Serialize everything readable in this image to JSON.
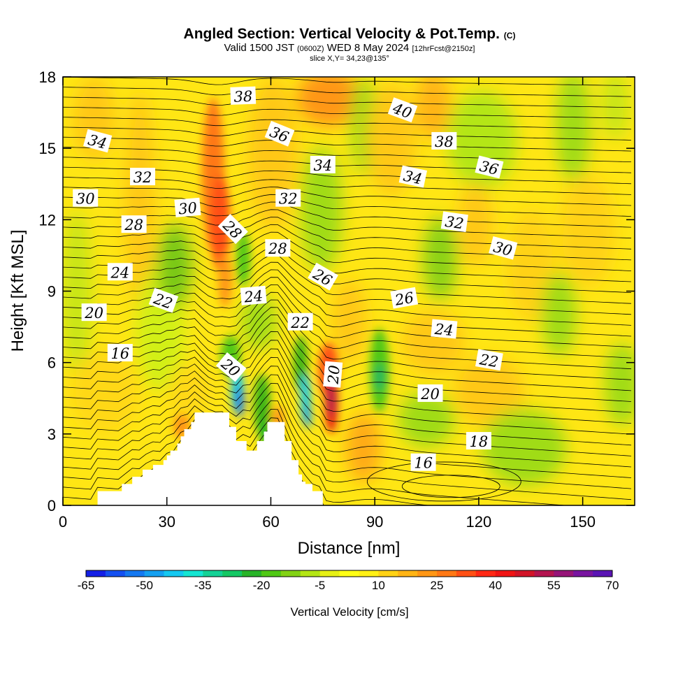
{
  "header": {
    "title": "Angled Section: Vertical Velocity & Pot.Temp.",
    "title_unit": "(C)",
    "valid_prefix": "Valid 1500 JST",
    "valid_zulu": "(0600Z)",
    "valid_date": "WED 8 May 2024",
    "forecast": "[12hrFcst@2150z]",
    "slice": "slice X,Y= 34,23@135°"
  },
  "chart_data": {
    "type": "heatmap",
    "title": "Angled Section: Vertical Velocity & Pot.Temp.",
    "xlabel": "Distance [nm]",
    "ylabel": "Height [Kft MSL]",
    "xlim": [
      0,
      165
    ],
    "ylim": [
      0,
      18
    ],
    "x_ticks": [
      "0",
      "30",
      "60",
      "90",
      "120",
      "150"
    ],
    "y_ticks": [
      "0",
      "3",
      "6",
      "9",
      "12",
      "15",
      "18"
    ],
    "colorbar": {
      "label": "Vertical Velocity [cm/s]",
      "tick_labels": [
        "-65",
        "-50",
        "-35",
        "-20",
        "-5",
        "10",
        "25",
        "40",
        "55",
        "70"
      ],
      "colors": [
        "#1420e6",
        "#1450f0",
        "#1478f0",
        "#14a0f0",
        "#14c8f0",
        "#14e6d2",
        "#14d296",
        "#14c864",
        "#28b428",
        "#50c814",
        "#82d214",
        "#b4e614",
        "#e6f014",
        "#ffff14",
        "#fff014",
        "#ffd214",
        "#ffb414",
        "#ff9614",
        "#ff7814",
        "#ff5014",
        "#ff2814",
        "#f01414",
        "#d21428",
        "#b41450",
        "#961478",
        "#7814a0",
        "#5a14b4"
      ]
    },
    "velocity_features": [
      {
        "kind": "updraft",
        "x": 45,
        "y": 11.5,
        "max_cm_s": 45
      },
      {
        "kind": "updraft",
        "x": 78,
        "y": 5,
        "max_cm_s": 60
      },
      {
        "kind": "downdraft",
        "x": 49,
        "y": 4.5,
        "min_cm_s": -50
      },
      {
        "kind": "downdraft",
        "x": 71,
        "y": 4.5,
        "min_cm_s": -45
      },
      {
        "kind": "downdraft",
        "x": 91,
        "y": 6,
        "min_cm_s": -35
      }
    ],
    "terrain_top_kft": [
      [
        10,
        0.6
      ],
      [
        17,
        0.9
      ],
      [
        20,
        1.2
      ],
      [
        23,
        1.5
      ],
      [
        26,
        1.7
      ],
      [
        29,
        1.9
      ],
      [
        30,
        2.1
      ],
      [
        31,
        2.3
      ],
      [
        33,
        2.6
      ],
      [
        34,
        2.9
      ],
      [
        35,
        3.2
      ],
      [
        37,
        3.5
      ],
      [
        38,
        3.9
      ],
      [
        47,
        3.9
      ],
      [
        48,
        3.3
      ],
      [
        50,
        2.7
      ],
      [
        53,
        2.3
      ],
      [
        56,
        2.7
      ],
      [
        58,
        3.1
      ],
      [
        59,
        3.5
      ],
      [
        63,
        3.5
      ],
      [
        64,
        2.7
      ],
      [
        66,
        1.9
      ],
      [
        68,
        1.3
      ],
      [
        69,
        1.0
      ],
      [
        70,
        0.9
      ],
      [
        72,
        0.6
      ],
      [
        75,
        0.6
      ]
    ],
    "isentrope_labels": [
      {
        "text": "38",
        "x": 52,
        "y": 17.2,
        "angle": -2
      },
      {
        "text": "40",
        "x": 98,
        "y": 16.6,
        "angle": 20
      },
      {
        "text": "34",
        "x": 10,
        "y": 15.3,
        "angle": 15
      },
      {
        "text": "36",
        "x": 62.5,
        "y": 15.6,
        "angle": 22
      },
      {
        "text": "38",
        "x": 110,
        "y": 15.3,
        "angle": 0
      },
      {
        "text": "34",
        "x": 75,
        "y": 14.3,
        "angle": 0
      },
      {
        "text": "36",
        "x": 123,
        "y": 14.2,
        "angle": 14
      },
      {
        "text": "32",
        "x": 23,
        "y": 13.8,
        "angle": 0
      },
      {
        "text": "34",
        "x": 101,
        "y": 13.8,
        "angle": 12
      },
      {
        "text": "30",
        "x": 6.5,
        "y": 12.9,
        "angle": 0
      },
      {
        "text": "32",
        "x": 65,
        "y": 12.9,
        "angle": 0
      },
      {
        "text": "30",
        "x": 36,
        "y": 12.5,
        "angle": -5
      },
      {
        "text": "32",
        "x": 113,
        "y": 11.9,
        "angle": 8
      },
      {
        "text": "28",
        "x": 20.5,
        "y": 11.8,
        "angle": 0
      },
      {
        "text": "28",
        "x": 49,
        "y": 11.6,
        "angle": 45
      },
      {
        "text": "28",
        "x": 62,
        "y": 10.8,
        "angle": 0
      },
      {
        "text": "30",
        "x": 127,
        "y": 10.8,
        "angle": 15
      },
      {
        "text": "24",
        "x": 16.5,
        "y": 9.8,
        "angle": 0
      },
      {
        "text": "26",
        "x": 75,
        "y": 9.6,
        "angle": 30
      },
      {
        "text": "24",
        "x": 55,
        "y": 8.8,
        "angle": -5
      },
      {
        "text": "22",
        "x": 29,
        "y": 8.6,
        "angle": 20
      },
      {
        "text": "26",
        "x": 98.5,
        "y": 8.7,
        "angle": -10
      },
      {
        "text": "20",
        "x": 9,
        "y": 8.1,
        "angle": 0
      },
      {
        "text": "22",
        "x": 68.5,
        "y": 7.7,
        "angle": 0
      },
      {
        "text": "24",
        "x": 110,
        "y": 7.4,
        "angle": 5
      },
      {
        "text": "16",
        "x": 16.5,
        "y": 6.4,
        "angle": 0
      },
      {
        "text": "22",
        "x": 123,
        "y": 6.1,
        "angle": 10
      },
      {
        "text": "20",
        "x": 48.5,
        "y": 5.8,
        "angle": 40
      },
      {
        "text": "20",
        "x": 78,
        "y": 5.5,
        "angle": -85
      },
      {
        "text": "20",
        "x": 106,
        "y": 4.7,
        "angle": 0
      },
      {
        "text": "18",
        "x": 120,
        "y": 2.7,
        "angle": 0
      },
      {
        "text": "16",
        "x": 104,
        "y": 1.8,
        "angle": 0
      }
    ]
  }
}
